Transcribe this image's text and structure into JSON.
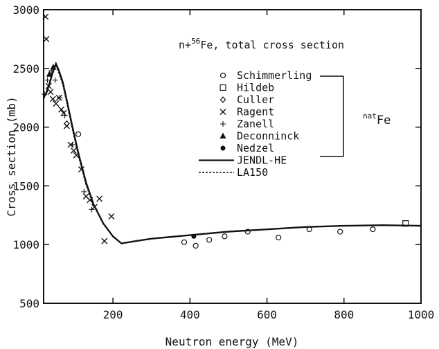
{
  "chart_data": {
    "type": "scatter",
    "title_prefix": "n+",
    "title_superscript": "56",
    "title_suffix": "Fe, total cross section",
    "xlabel": "Neutron energy (MeV)",
    "ylabel": "Cross section (mb)",
    "xlim": [
      20,
      1000
    ],
    "ylim": [
      500,
      3000
    ],
    "xticks": [
      200,
      400,
      600,
      800,
      1000
    ],
    "yticks": [
      500,
      1000,
      1500,
      2000,
      2500,
      3000
    ],
    "grid": false,
    "legend_position": "top-center",
    "group_label_superscript": "nat",
    "group_label_text": "Fe",
    "series": [
      {
        "name": "Schimmerling",
        "marker": "circle",
        "x": [
          110,
          385,
          415,
          450,
          490,
          550,
          630,
          710,
          790,
          875
        ],
        "y": [
          1940,
          1020,
          990,
          1040,
          1070,
          1110,
          1060,
          1130,
          1110,
          1130
        ]
      },
      {
        "name": "Hildeb",
        "marker": "square",
        "x": [
          960
        ],
        "y": [
          1180
        ]
      },
      {
        "name": "Culler",
        "marker": "diamond",
        "x": [
          80
        ],
        "y": [
          2030
        ]
      },
      {
        "name": "Ragent",
        "marker": "cross",
        "x": [
          25,
          27,
          33,
          38,
          44,
          52,
          60,
          66,
          72,
          80,
          90,
          98,
          105,
          118,
          130,
          140,
          152,
          165,
          178,
          196
        ],
        "y": [
          2940,
          2750,
          2350,
          2300,
          2240,
          2200,
          2250,
          2150,
          2120,
          2010,
          1850,
          1800,
          1760,
          1640,
          1410,
          1380,
          1320,
          1390,
          1030,
          1240
        ]
      },
      {
        "name": "Zanell",
        "marker": "plus",
        "x": [
          22,
          30,
          40,
          50,
          62,
          75,
          95,
          125,
          145
        ],
        "y": [
          2280,
          2400,
          2480,
          2400,
          2250,
          2100,
          1850,
          1450,
          1300
        ]
      },
      {
        "name": "Deconninck",
        "marker": "triangle",
        "x": [
          35,
          45
        ],
        "y": [
          2450,
          2510
        ]
      },
      {
        "name": "Nedzel",
        "marker": "dot",
        "x": [
          410
        ],
        "y": [
          1070
        ]
      },
      {
        "name": "JENDL-HE",
        "marker": "line",
        "x": [
          20,
          28,
          36,
          44,
          52,
          60,
          70,
          80,
          95,
          110,
          130,
          150,
          175,
          200,
          222,
          260,
          300,
          400,
          500,
          600,
          700,
          800,
          900,
          1000
        ],
        "y": [
          2250,
          2300,
          2380,
          2470,
          2540,
          2480,
          2380,
          2230,
          2000,
          1780,
          1530,
          1340,
          1180,
          1070,
          1010,
          1030,
          1050,
          1080,
          1110,
          1130,
          1150,
          1160,
          1165,
          1160
        ]
      },
      {
        "name": "LA150",
        "marker": "dashline",
        "x": [
          20,
          28,
          36,
          44,
          52,
          60,
          70,
          80,
          95,
          110,
          130,
          150
        ],
        "y": [
          2240,
          2290,
          2370,
          2460,
          2520,
          2460,
          2360,
          2210,
          1980,
          1760,
          1510,
          1330
        ]
      }
    ]
  }
}
